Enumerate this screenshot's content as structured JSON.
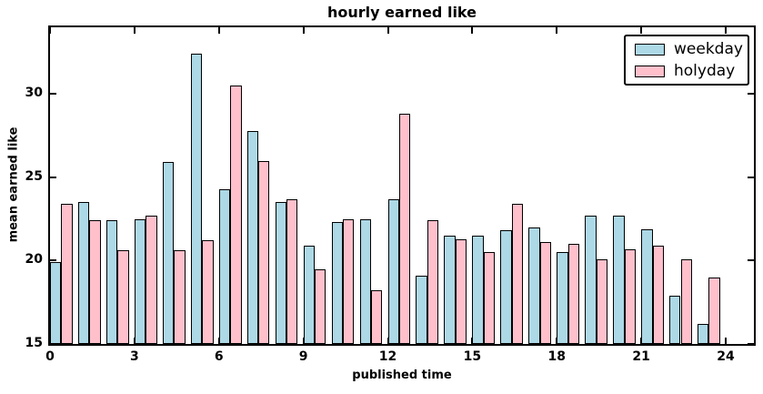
{
  "chart_data": {
    "type": "bar",
    "title": "hourly earned like",
    "xlabel": "published time",
    "ylabel": "mean earned like",
    "categories": [
      0,
      1,
      2,
      3,
      4,
      5,
      6,
      7,
      8,
      9,
      10,
      11,
      12,
      13,
      14,
      15,
      16,
      17,
      18,
      19,
      20,
      21,
      22,
      23
    ],
    "series": [
      {
        "name": "weekday",
        "color": "#ADD8E6",
        "values": [
          19.9,
          23.5,
          22.4,
          22.5,
          25.9,
          32.4,
          24.3,
          27.8,
          23.5,
          20.9,
          22.3,
          22.5,
          23.7,
          19.1,
          21.5,
          21.5,
          21.8,
          22.0,
          20.5,
          22.7,
          22.7,
          21.9,
          17.9,
          16.2
        ]
      },
      {
        "name": "holyday",
        "color": "#FFC0CB",
        "values": [
          23.4,
          22.4,
          20.6,
          22.7,
          20.6,
          21.2,
          30.5,
          26.0,
          23.7,
          19.5,
          22.5,
          18.2,
          28.8,
          22.4,
          21.3,
          20.5,
          23.4,
          21.1,
          21.0,
          20.1,
          20.7,
          20.9,
          20.1,
          19.0
        ]
      }
    ],
    "bar_width": 0.4,
    "xlim": [
      0,
      25
    ],
    "ylim": [
      15,
      34
    ],
    "xticks": [
      0,
      3,
      6,
      9,
      12,
      15,
      18,
      21,
      24
    ],
    "yticks": [
      15,
      20,
      25,
      30
    ],
    "grid": false,
    "legend_position": "upper right",
    "edge_color": "#000000"
  },
  "legend": {
    "items": [
      {
        "label": "weekday",
        "color": "#ADD8E6"
      },
      {
        "label": "holyday",
        "color": "#FFC0CB"
      }
    ]
  }
}
